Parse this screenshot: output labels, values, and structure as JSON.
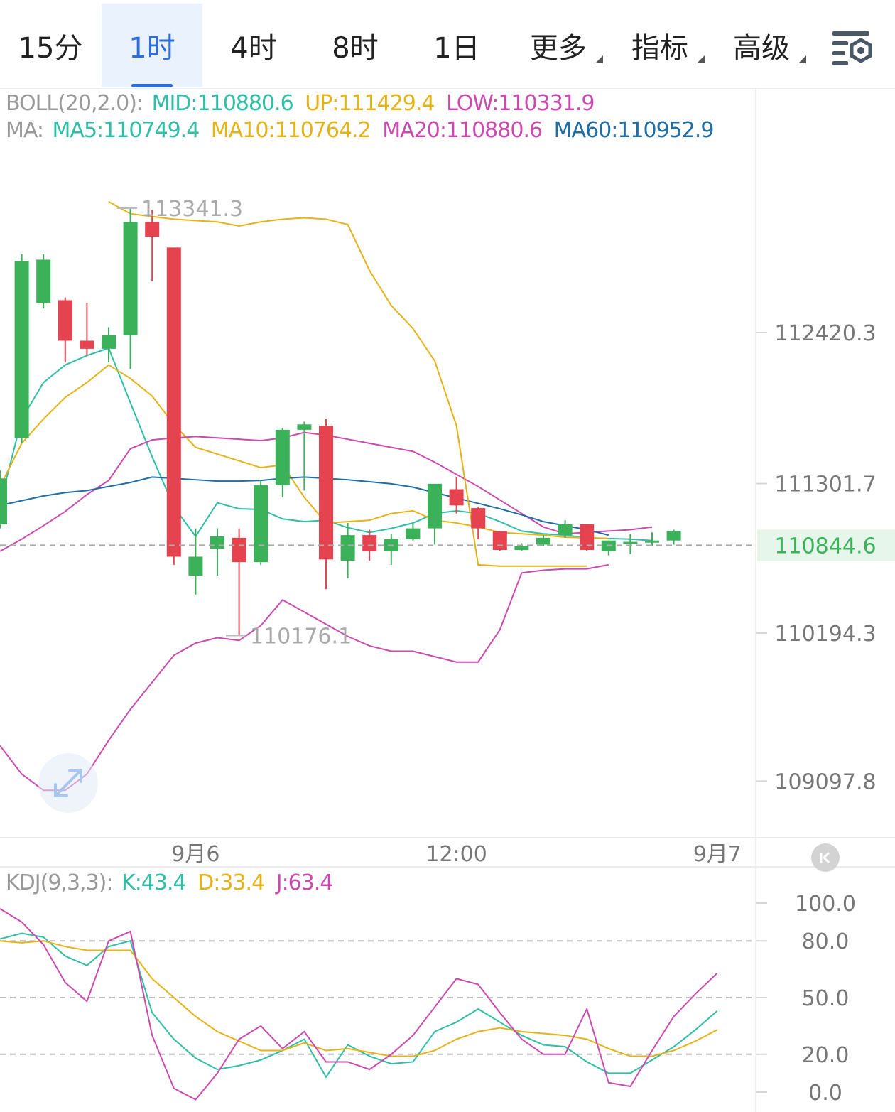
{
  "tabs": [
    {
      "label": "15分",
      "active": false,
      "dropdown": false
    },
    {
      "label": "1时",
      "active": true,
      "dropdown": false
    },
    {
      "label": "4时",
      "active": false,
      "dropdown": false
    },
    {
      "label": "8时",
      "active": false,
      "dropdown": false
    },
    {
      "label": "1日",
      "active": false,
      "dropdown": false
    },
    {
      "label": "更多",
      "active": false,
      "dropdown": true
    },
    {
      "label": "指标",
      "active": false,
      "dropdown": true
    },
    {
      "label": "高级",
      "active": false,
      "dropdown": true
    }
  ],
  "settings_icon": "chart-settings-icon",
  "expand_icon": "expand-arrows-icon",
  "back_icon": "jump-to-latest-icon",
  "colors": {
    "up": "#3bb25a",
    "down": "#e5434f",
    "accent": "#2c6fdc",
    "ma5": "#2fbfa6",
    "ma10": "#e6b216",
    "ma20": "#cc4ab0",
    "ma60": "#1f6ea6",
    "muted": "#999999",
    "current_price_bg": "#e7f6ea",
    "current_price_fg": "#3bb25a"
  },
  "legend_boll": {
    "prefix": "BOLL(20,2.0):",
    "mid": "MID:110880.6",
    "up": "UP:111429.4",
    "low": "LOW:110331.9"
  },
  "legend_ma": {
    "prefix": "MA:",
    "ma5": "MA5:110749.4",
    "ma10": "MA10:110764.2",
    "ma20": "MA20:110880.6",
    "ma60": "MA60:110952.9"
  },
  "legend_kdj": {
    "prefix": "KDJ(9,3,3):",
    "k": "K:43.4",
    "d": "D:33.4",
    "j": "J:63.4"
  },
  "chart_data": [
    {
      "type": "candlestick",
      "y_axis": {
        "ticks": [
          "112420.3",
          "111301.7",
          "110194.3",
          "109097.8"
        ],
        "tick_values": [
          112420.3,
          111301.7,
          110194.3,
          109097.8
        ]
      },
      "x_axis": {
        "labels": [
          "9月6",
          "12:00",
          "9月7"
        ],
        "label_at_index": [
          9,
          21,
          33
        ]
      },
      "current_price": {
        "value": 110844.6,
        "label": "110844.6"
      },
      "annotations": [
        {
          "label": "113341.3",
          "value": 113341.3,
          "index": 5
        },
        {
          "label": "110176.1",
          "value": 110176.1,
          "index": 10
        }
      ],
      "candles": [
        {
          "o": 111000,
          "c": 111340,
          "h": 111400,
          "l": 110970
        },
        {
          "o": 111640,
          "c": 112950,
          "h": 113000,
          "l": 111600
        },
        {
          "o": 112640,
          "c": 112960,
          "h": 113000,
          "l": 112600
        },
        {
          "o": 112660,
          "c": 112360,
          "h": 112680,
          "l": 112200
        },
        {
          "o": 112360,
          "c": 112300,
          "h": 112640,
          "l": 112250
        },
        {
          "o": 112300,
          "c": 112400,
          "h": 112460,
          "l": 112200
        },
        {
          "o": 112400,
          "c": 113240,
          "h": 113341.3,
          "l": 112150
        },
        {
          "o": 113240,
          "c": 113130,
          "h": 113330,
          "l": 112800
        },
        {
          "o": 113050,
          "c": 110760,
          "h": 113050,
          "l": 110700
        },
        {
          "o": 110620,
          "c": 110760,
          "h": 110970,
          "l": 110480
        },
        {
          "o": 110820,
          "c": 110910,
          "h": 110970,
          "l": 110620
        },
        {
          "o": 110900,
          "c": 110720,
          "h": 110970,
          "l": 110176.1
        },
        {
          "o": 110720,
          "c": 111290,
          "h": 111330,
          "l": 110700
        },
        {
          "o": 111290,
          "c": 111700,
          "h": 111710,
          "l": 111200
        },
        {
          "o": 111700,
          "c": 111740,
          "h": 111760,
          "l": 111250
        },
        {
          "o": 111730,
          "c": 110740,
          "h": 111780,
          "l": 110520
        },
        {
          "o": 110730,
          "c": 110920,
          "h": 111010,
          "l": 110600
        },
        {
          "o": 110920,
          "c": 110800,
          "h": 110960,
          "l": 110730
        },
        {
          "o": 110800,
          "c": 110890,
          "h": 110930,
          "l": 110700
        },
        {
          "o": 110890,
          "c": 110970,
          "h": 111000,
          "l": 110880
        },
        {
          "o": 110970,
          "c": 111300,
          "h": 111300,
          "l": 110850
        },
        {
          "o": 111260,
          "c": 111140,
          "h": 111350,
          "l": 111080
        },
        {
          "o": 111120,
          "c": 110970,
          "h": 111130,
          "l": 110890
        },
        {
          "o": 110950,
          "c": 110810,
          "h": 110950,
          "l": 110800
        },
        {
          "o": 110810,
          "c": 110840,
          "h": 110860,
          "l": 110800
        },
        {
          "o": 110850,
          "c": 110900,
          "h": 110920,
          "l": 110840
        },
        {
          "o": 110920,
          "c": 111000,
          "h": 111030,
          "l": 110900
        },
        {
          "o": 111000,
          "c": 110810,
          "h": 111000,
          "l": 110800
        },
        {
          "o": 110800,
          "c": 110880,
          "h": 110880,
          "l": 110770
        },
        {
          "o": 110860,
          "c": 110870,
          "h": 110930,
          "l": 110780
        },
        {
          "o": 110870,
          "c": 110880,
          "h": 110940,
          "l": 110840
        },
        {
          "o": 110880,
          "c": 110950,
          "h": 110960,
          "l": 110850
        }
      ],
      "series": [
        {
          "key": "ma5",
          "x_start": 0,
          "values": [
            111150,
            111780,
            112050,
            112180,
            112250,
            112305,
            111900,
            111500,
            111130,
            110910,
            111160,
            111115,
            111110,
            111040,
            111020,
            111030,
            110975,
            110940,
            110970,
            111010,
            111080,
            111100,
            111080,
            111020,
            110950,
            110930,
            110920,
            110900,
            110895,
            110890,
            110880
          ]
        },
        {
          "key": "ma10",
          "x_start": 0,
          "values": [
            111280,
            111600,
            111780,
            111940,
            112050,
            112180,
            112080,
            111950,
            111740,
            111570,
            111520,
            111470,
            111420,
            111440,
            111200,
            111010,
            111020,
            111030,
            111080,
            111100,
            111030,
            111010,
            110980,
            110940,
            110930,
            110920,
            110905,
            110900,
            110895
          ]
        },
        {
          "key": "ma20",
          "x_start": 0,
          "values": [
            110800,
            110890,
            110990,
            111095,
            111220,
            111325,
            111560,
            111625,
            111640,
            111650,
            111640,
            111630,
            111620,
            111640,
            111680,
            111660,
            111630,
            111600,
            111570,
            111540,
            111460,
            111370,
            111280,
            111180,
            111080,
            110980,
            110930,
            110940,
            110950,
            110960,
            110980
          ]
        },
        {
          "key": "ma60",
          "x_start": 0,
          "values": [
            111140,
            111175,
            111210,
            111235,
            111250,
            111280,
            111310,
            111350,
            111340,
            111330,
            111320,
            111320,
            111325,
            111340,
            111350,
            111340,
            111330,
            111315,
            111300,
            111275,
            111235,
            111195,
            111155,
            111115,
            111070,
            111020,
            110990,
            110960,
            110920
          ]
        },
        {
          "key": "ma10",
          "role": "boll-up",
          "x_start": 5,
          "values": [
            113390,
            113300,
            113280,
            113260,
            113250,
            113240,
            113210,
            113240,
            113260,
            113270,
            113260,
            113220,
            112880,
            112620,
            112450,
            112210,
            111730,
            110700,
            110690,
            110690,
            110690,
            110690,
            110690
          ]
        },
        {
          "key": "ma20",
          "role": "boll-low",
          "x_start": 0,
          "values": [
            109360,
            109150,
            109030,
            109030,
            109150,
            109400,
            109630,
            109830,
            110030,
            110120,
            110160,
            110140,
            110250,
            110440,
            110350,
            110260,
            110170,
            110100,
            110060,
            110060,
            110020,
            109980,
            109980,
            110220,
            110640,
            110660,
            110670,
            110670,
            110700
          ]
        }
      ]
    },
    {
      "type": "line",
      "name": "KDJ",
      "y_axis": {
        "ticks": [
          "100.0",
          "80.0",
          "50.0",
          "20.0",
          "0.0"
        ],
        "tick_values": [
          100,
          80,
          50,
          20,
          0
        ]
      },
      "series": [
        {
          "key": "ma5",
          "label": "K",
          "x_start": 0,
          "values": [
            81,
            84,
            82,
            72,
            67,
            77,
            80,
            42,
            28,
            18,
            12,
            14,
            17,
            22,
            28,
            8,
            25,
            19,
            15,
            16,
            32,
            37,
            44,
            37,
            30,
            25,
            24,
            16,
            10,
            10,
            17,
            24,
            33,
            43
          ]
        },
        {
          "key": "ma10",
          "label": "D",
          "x_start": 0,
          "values": [
            80,
            79,
            80,
            77,
            75,
            75,
            75,
            60,
            50,
            40,
            32,
            27,
            22,
            22,
            26,
            22,
            23,
            21,
            19,
            19,
            22,
            28,
            32,
            34,
            32,
            31,
            30,
            28,
            23,
            19,
            19,
            22,
            27,
            33
          ]
        },
        {
          "key": "ma20",
          "label": "J",
          "x_start": 0,
          "values": [
            97,
            90,
            78,
            58,
            48,
            80,
            85,
            30,
            2,
            -4,
            10,
            28,
            35,
            23,
            32,
            16,
            16,
            12,
            20,
            30,
            45,
            60,
            57,
            42,
            28,
            20,
            20,
            44,
            5,
            3,
            22,
            40,
            52,
            63
          ]
        }
      ]
    }
  ]
}
